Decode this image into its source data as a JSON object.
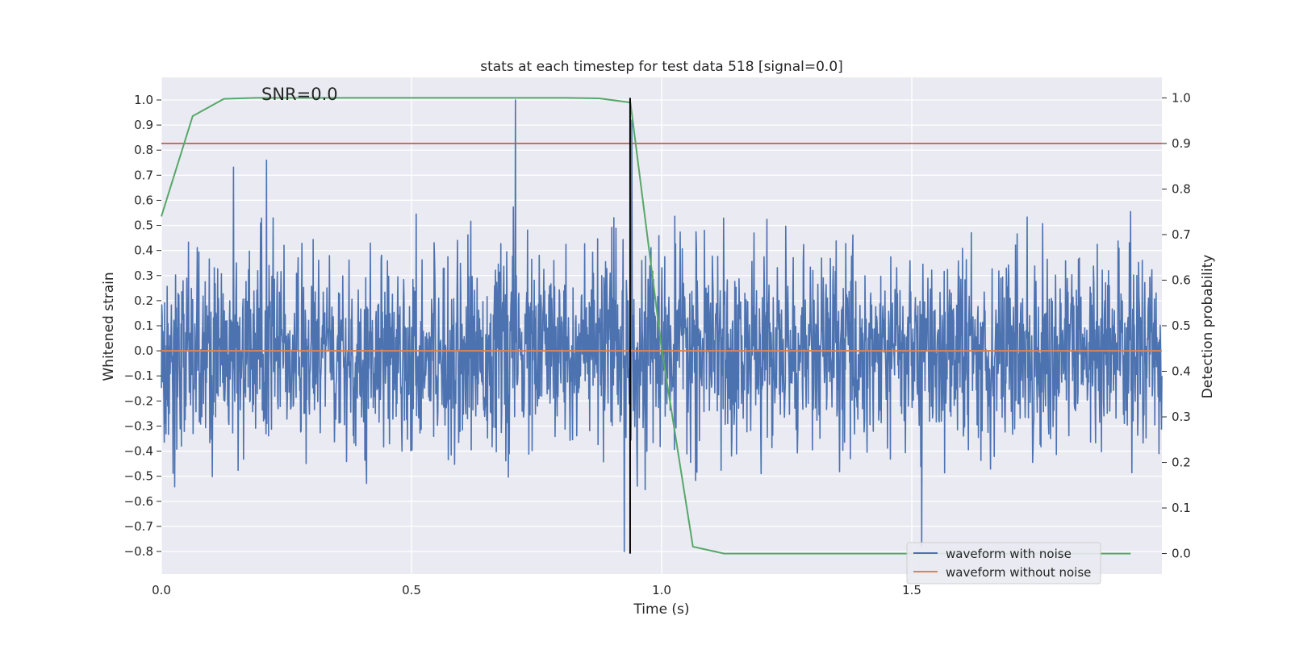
{
  "chart_data": {
    "type": "line",
    "title": "stats at each timestep for test data 518 [signal=0.0]",
    "annotation": "SNR=0.0",
    "xlabel": "Time (s)",
    "ylabel": "Whitened strain",
    "y2label": "Detection probability",
    "xlim": [
      0.0,
      2.0
    ],
    "ylim": [
      -0.89,
      1.09
    ],
    "y2lim": [
      -0.045,
      1.045
    ],
    "xticks": [
      0.0,
      0.5,
      1.0,
      1.5
    ],
    "xtick_labels": [
      "0.0",
      "0.5",
      "1.0",
      "1.5"
    ],
    "yticks": [
      -0.8,
      -0.7,
      -0.6,
      -0.5,
      -0.4,
      -0.3,
      -0.2,
      -0.1,
      0.0,
      0.1,
      0.2,
      0.3,
      0.4,
      0.5,
      0.6,
      0.7,
      0.8,
      0.9,
      1.0
    ],
    "ytick_labels": [
      "−0.8",
      "−0.7",
      "−0.6",
      "−0.5",
      "−0.4",
      "−0.3",
      "−0.2",
      "−0.1",
      "0.0",
      "0.1",
      "0.2",
      "0.3",
      "0.4",
      "0.5",
      "0.6",
      "0.7",
      "0.8",
      "0.9",
      "1.0"
    ],
    "y2ticks": [
      0.0,
      0.1,
      0.2,
      0.3,
      0.4,
      0.5,
      0.6,
      0.7,
      0.8,
      0.9,
      1.0
    ],
    "y2tick_labels": [
      "0.0",
      "0.1",
      "0.2",
      "0.3",
      "0.4",
      "0.5",
      "0.6",
      "0.7",
      "0.8",
      "0.9",
      "1.0"
    ],
    "grid": true,
    "legend_position": "lower-right",
    "threshold": {
      "y2": 0.9,
      "color": "#c44e52"
    },
    "marker_line": {
      "x": 0.937,
      "color": "#000000"
    },
    "series": [
      {
        "name": "waveform with noise",
        "axis": "left",
        "color": "#4c72b0",
        "style": "noise",
        "n_points": 2400,
        "x_range": [
          0.0,
          2.0
        ],
        "y_min": -0.8,
        "y_max": 1.0,
        "spikes": [
          {
            "x": 0.708,
            "y": 1.0
          },
          {
            "x": 0.925,
            "y": -0.8
          },
          {
            "x": 1.52,
            "y": -0.78
          },
          {
            "x": 0.94,
            "y": 0.92
          },
          {
            "x": 0.21,
            "y": 0.76
          }
        ]
      },
      {
        "name": "waveform without noise",
        "axis": "left",
        "color": "#dd8452",
        "x": [
          0.0,
          2.0
        ],
        "y": [
          0.0,
          0.0
        ]
      },
      {
        "name": "detection probability",
        "axis": "right",
        "color": "#55a868",
        "x": [
          0.0,
          0.0625,
          0.125,
          0.1875,
          0.25,
          0.3125,
          0.375,
          0.4375,
          0.5,
          0.5625,
          0.625,
          0.6875,
          0.75,
          0.8125,
          0.875,
          0.9375,
          1.0,
          1.0625,
          1.125,
          1.1875,
          1.25,
          1.3125,
          1.375,
          1.4375,
          1.5,
          1.5625,
          1.625,
          1.6875,
          1.75,
          1.8125,
          1.9375
        ],
        "y": [
          0.74,
          0.96,
          0.998,
          1.0,
          1.0,
          1.0,
          1.0,
          1.0,
          1.0,
          1.0,
          1.0,
          1.0,
          1.0,
          1.0,
          0.999,
          0.99,
          0.45,
          0.015,
          0.0,
          0.0,
          0.0,
          0.0,
          0.0,
          0.0,
          0.0,
          0.0,
          0.0,
          0.0,
          0.0,
          0.0,
          0.0
        ]
      }
    ]
  }
}
